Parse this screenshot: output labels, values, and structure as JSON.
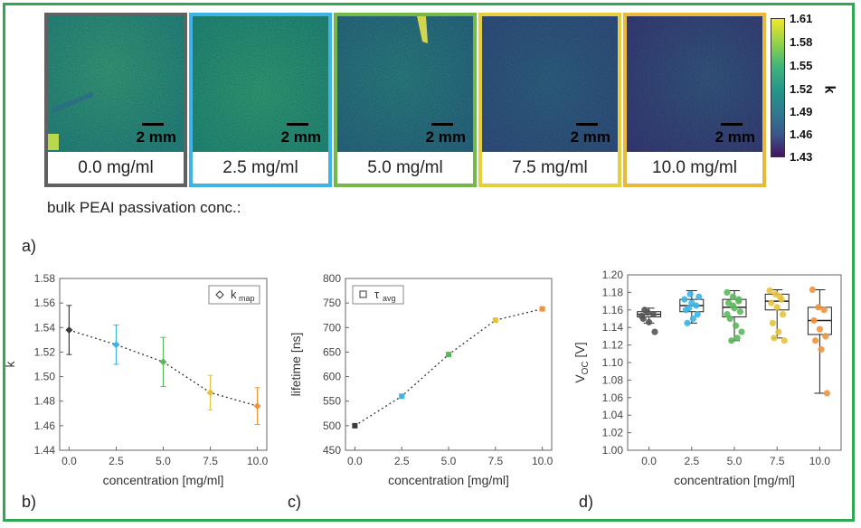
{
  "tiles": [
    {
      "label": "0.0 mg/ml",
      "border_color": "#616161",
      "bg_color": "#2f9a84",
      "scale": "2 mm"
    },
    {
      "label": "2.5 mg/ml",
      "border_color": "#3db4e5",
      "bg_color": "#27a383",
      "scale": "2 mm"
    },
    {
      "label": "5.0 mg/ml",
      "border_color": "#74b84a",
      "bg_color": "#2d7f8d",
      "scale": "2 mm"
    },
    {
      "label": "7.5 mg/ml",
      "border_color": "#e7cf3c",
      "bg_color": "#33608f",
      "scale": "2 mm"
    },
    {
      "label": "10.0 mg/ml",
      "border_color": "#eab83b",
      "bg_color": "#3a4c8a",
      "scale": "2 mm"
    }
  ],
  "colorbar": {
    "title": "k",
    "ticks": [
      "1.61",
      "1.58",
      "1.55",
      "1.52",
      "1.49",
      "1.46",
      "1.43"
    ],
    "min": 1.43,
    "max": 1.61
  },
  "bulk_label": "bulk PEAI passivation conc.:",
  "panel_labels": {
    "a": "a)",
    "b": "b)",
    "c": "c)",
    "d": "d)"
  },
  "chart_data": [
    {
      "type": "scatter",
      "id": "b",
      "title": "",
      "xlabel": "concentration [mg/ml]",
      "ylabel": "k",
      "x": [
        0.0,
        2.5,
        5.0,
        7.5,
        10.0
      ],
      "values": [
        1.538,
        1.526,
        1.512,
        1.487,
        1.476
      ],
      "errors": [
        0.02,
        0.016,
        0.02,
        0.014,
        0.015
      ],
      "colors": [
        "#3a3a3a",
        "#3db4e5",
        "#5cb85c",
        "#e5c23c",
        "#f0943c"
      ],
      "marker": "diamond",
      "trend": "dotted",
      "legend": {
        "label": "k",
        "sub": "map",
        "position": "top-right"
      },
      "xlim": [
        -0.5,
        10.5
      ],
      "ylim": [
        1.44,
        1.58
      ],
      "xticks": [
        "0.0",
        "2.5",
        "5.0",
        "7.5",
        "10.0"
      ],
      "yticks": [
        "1.44",
        "1.46",
        "1.48",
        "1.50",
        "1.52",
        "1.54",
        "1.56",
        "1.58"
      ]
    },
    {
      "type": "scatter",
      "id": "c",
      "title": "",
      "xlabel": "concentration [mg/ml]",
      "ylabel": "lifetime [ns]",
      "x": [
        0.0,
        2.5,
        5.0,
        7.5,
        10.0
      ],
      "values": [
        500,
        560,
        645,
        715,
        738
      ],
      "colors": [
        "#3a3a3a",
        "#3db4e5",
        "#5cb85c",
        "#e5c23c",
        "#f0943c"
      ],
      "marker": "square",
      "trend": "dotted",
      "legend": {
        "label": "τ",
        "sub": "avg",
        "position": "top-left"
      },
      "xlim": [
        -0.5,
        10.5
      ],
      "ylim": [
        450,
        800
      ],
      "xticks": [
        "0.0",
        "2.5",
        "5.0",
        "7.5",
        "10.0"
      ],
      "yticks": [
        "450",
        "500",
        "550",
        "600",
        "650",
        "700",
        "750",
        "800"
      ]
    },
    {
      "type": "box",
      "id": "d",
      "title": "",
      "xlabel": "concentration [mg/ml]",
      "ylabel": "V",
      "ylabel_sub": "OC",
      "ylabel_unit": " [V]",
      "categories": [
        "0.0",
        "2.5",
        "5.0",
        "7.5",
        "10.0"
      ],
      "colors": [
        "#555555",
        "#3db4e5",
        "#5cb85c",
        "#e5c23c",
        "#f0943c"
      ],
      "boxes": [
        {
          "q1": 1.152,
          "median": 1.155,
          "q3": 1.158,
          "min": 1.145,
          "max": 1.162
        },
        {
          "q1": 1.158,
          "median": 1.165,
          "q3": 1.172,
          "min": 1.145,
          "max": 1.182
        },
        {
          "q1": 1.152,
          "median": 1.163,
          "q3": 1.172,
          "min": 1.125,
          "max": 1.182
        },
        {
          "q1": 1.16,
          "median": 1.17,
          "q3": 1.178,
          "min": 1.128,
          "max": 1.183
        },
        {
          "q1": 1.132,
          "median": 1.148,
          "q3": 1.163,
          "min": 1.065,
          "max": 1.183
        }
      ],
      "points": [
        [
          1.153,
          1.157,
          1.155,
          1.15,
          1.146,
          1.135,
          1.16
        ],
        [
          1.172,
          1.178,
          1.165,
          1.16,
          1.168,
          1.155,
          1.145,
          1.15,
          1.175,
          1.162
        ],
        [
          1.18,
          1.175,
          1.17,
          1.168,
          1.162,
          1.158,
          1.15,
          1.142,
          1.135,
          1.125,
          1.128,
          1.155,
          1.165,
          1.172
        ],
        [
          1.182,
          1.178,
          1.172,
          1.168,
          1.163,
          1.155,
          1.145,
          1.135,
          1.125,
          1.128,
          1.175
        ],
        [
          1.183,
          1.163,
          1.16,
          1.148,
          1.138,
          1.13,
          1.125,
          1.115,
          1.065
        ]
      ],
      "ylim": [
        1.0,
        1.2
      ],
      "yticks": [
        "1.00",
        "1.02",
        "1.04",
        "1.06",
        "1.08",
        "1.10",
        "1.12",
        "1.14",
        "1.16",
        "1.18",
        "1.20"
      ]
    }
  ]
}
